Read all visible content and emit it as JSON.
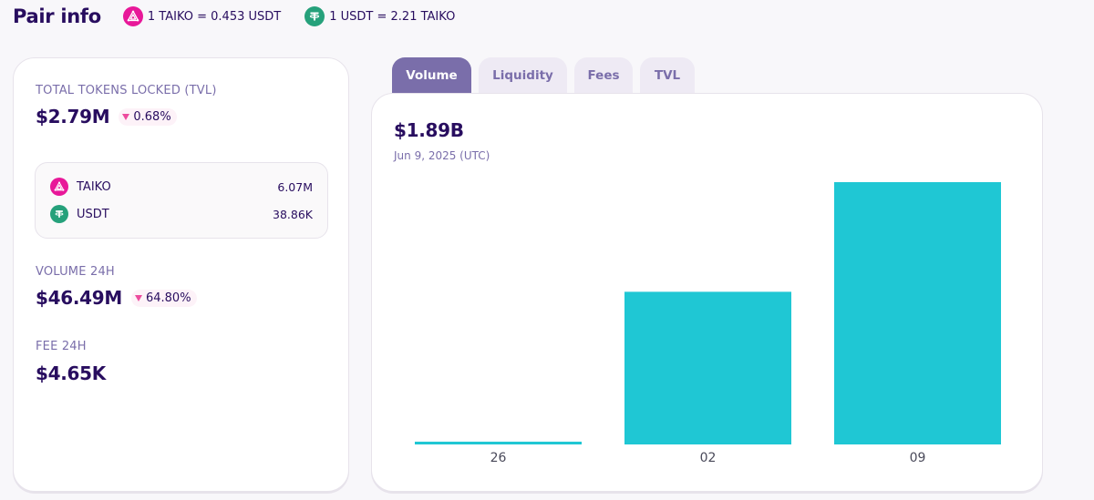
{
  "header": {
    "title": "Pair info",
    "rates": [
      {
        "icon": "taiko-token-icon",
        "text": "1 TAIKO = 0.453 USDT"
      },
      {
        "icon": "usdt-token-icon",
        "text": "1 USDT = 2.21 TAIKO"
      }
    ]
  },
  "stats": {
    "tvl": {
      "label": "TOTAL TOKENS LOCKED (TVL)",
      "value": "$2.79M",
      "change": "0.68%",
      "direction": "down"
    },
    "tokens": [
      {
        "symbol": "TAIKO",
        "icon": "taiko-token-icon",
        "amount": "6.07M"
      },
      {
        "symbol": "USDT",
        "icon": "usdt-token-icon",
        "amount": "38.86K"
      }
    ],
    "volume": {
      "label": "VOLUME 24H",
      "value": "$46.49M",
      "change": "64.80%",
      "direction": "down"
    },
    "fee": {
      "label": "FEE 24H",
      "value": "$4.65K"
    }
  },
  "tabs": [
    "Volume",
    "Liquidity",
    "Fees",
    "TVL"
  ],
  "active_tab": "Volume",
  "chart": {
    "value": "$1.89B",
    "date": "Jun 9, 2025 (UTC)"
  },
  "colors": {
    "accent": "#7a6eaa",
    "bar": "#1fc7d4",
    "text": "#280d5f",
    "negative": "#ed4b9e",
    "taiko": "#e81899",
    "usdt": "#26a17b"
  },
  "chart_data": {
    "type": "bar",
    "categories": [
      "26",
      "02",
      "09"
    ],
    "values": [
      0.02,
      1.1,
      1.89
    ],
    "title": "",
    "xlabel": "",
    "ylabel": "",
    "ylim": [
      0,
      1.89
    ],
    "grid": false
  }
}
